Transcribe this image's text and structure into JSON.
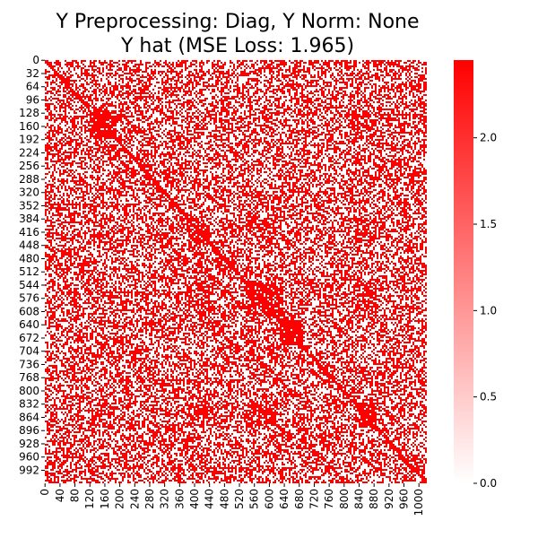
{
  "chart_data": {
    "type": "heatmap",
    "title": "Y Preprocessing: Diag, Y Norm: None",
    "subtitle": "Y hat (MSE Loss: 1.965)",
    "xlabel": "",
    "ylabel": "",
    "matrix_size": 1024,
    "colormap": {
      "low_color": "#ffffff",
      "high_color": "#ff0000",
      "vmin": 0.0,
      "vmax": 2.45
    },
    "colorbar_ticks": [
      "0.0",
      "0.5",
      "1.0",
      "1.5",
      "2.0"
    ],
    "colorbar_tick_values": [
      0.0,
      0.5,
      1.0,
      1.5,
      2.0
    ],
    "x_tick_labels": [
      "0",
      "40",
      "80",
      "120",
      "160",
      "200",
      "240",
      "280",
      "320",
      "360",
      "400",
      "440",
      "480",
      "520",
      "560",
      "600",
      "640",
      "680",
      "720",
      "760",
      "800",
      "840",
      "880",
      "920",
      "960",
      "1000"
    ],
    "y_tick_labels": [
      "0",
      "32",
      "64",
      "96",
      "128",
      "160",
      "192",
      "224",
      "256",
      "288",
      "320",
      "352",
      "384",
      "416",
      "448",
      "480",
      "512",
      "544",
      "576",
      "608",
      "640",
      "672",
      "704",
      "736",
      "768",
      "800",
      "832",
      "864",
      "896",
      "928",
      "960",
      "992"
    ],
    "dense_blocks": [
      {
        "rows": [
          120,
          190
        ],
        "cols": [
          120,
          190
        ],
        "density": 0.85
      },
      {
        "rows": [
          380,
          440
        ],
        "cols": [
          380,
          440
        ],
        "density": 0.82
      },
      {
        "rows": [
          540,
          620
        ],
        "cols": [
          540,
          640
        ],
        "density": 0.85
      },
      {
        "rows": [
          630,
          690
        ],
        "cols": [
          630,
          690
        ],
        "density": 0.92
      },
      {
        "rows": [
          830,
          890
        ],
        "cols": [
          830,
          890
        ],
        "density": 0.85
      },
      {
        "rows": [
          380,
          440
        ],
        "cols": [
          540,
          620
        ],
        "density": 0.7
      },
      {
        "rows": [
          540,
          620
        ],
        "cols": [
          380,
          440
        ],
        "density": 0.7
      },
      {
        "rows": [
          830,
          890
        ],
        "cols": [
          380,
          440
        ],
        "density": 0.7
      },
      {
        "rows": [
          380,
          440
        ],
        "cols": [
          830,
          890
        ],
        "density": 0.7
      },
      {
        "rows": [
          830,
          890
        ],
        "cols": [
          540,
          620
        ],
        "density": 0.7
      },
      {
        "rows": [
          540,
          620
        ],
        "cols": [
          830,
          890
        ],
        "density": 0.7
      },
      {
        "rows": [
          120,
          190
        ],
        "cols": [
          830,
          890
        ],
        "density": 0.65
      },
      {
        "rows": [
          830,
          890
        ],
        "cols": [
          120,
          190
        ],
        "density": 0.65
      }
    ],
    "background_density": 0.5,
    "diagonal": true
  }
}
